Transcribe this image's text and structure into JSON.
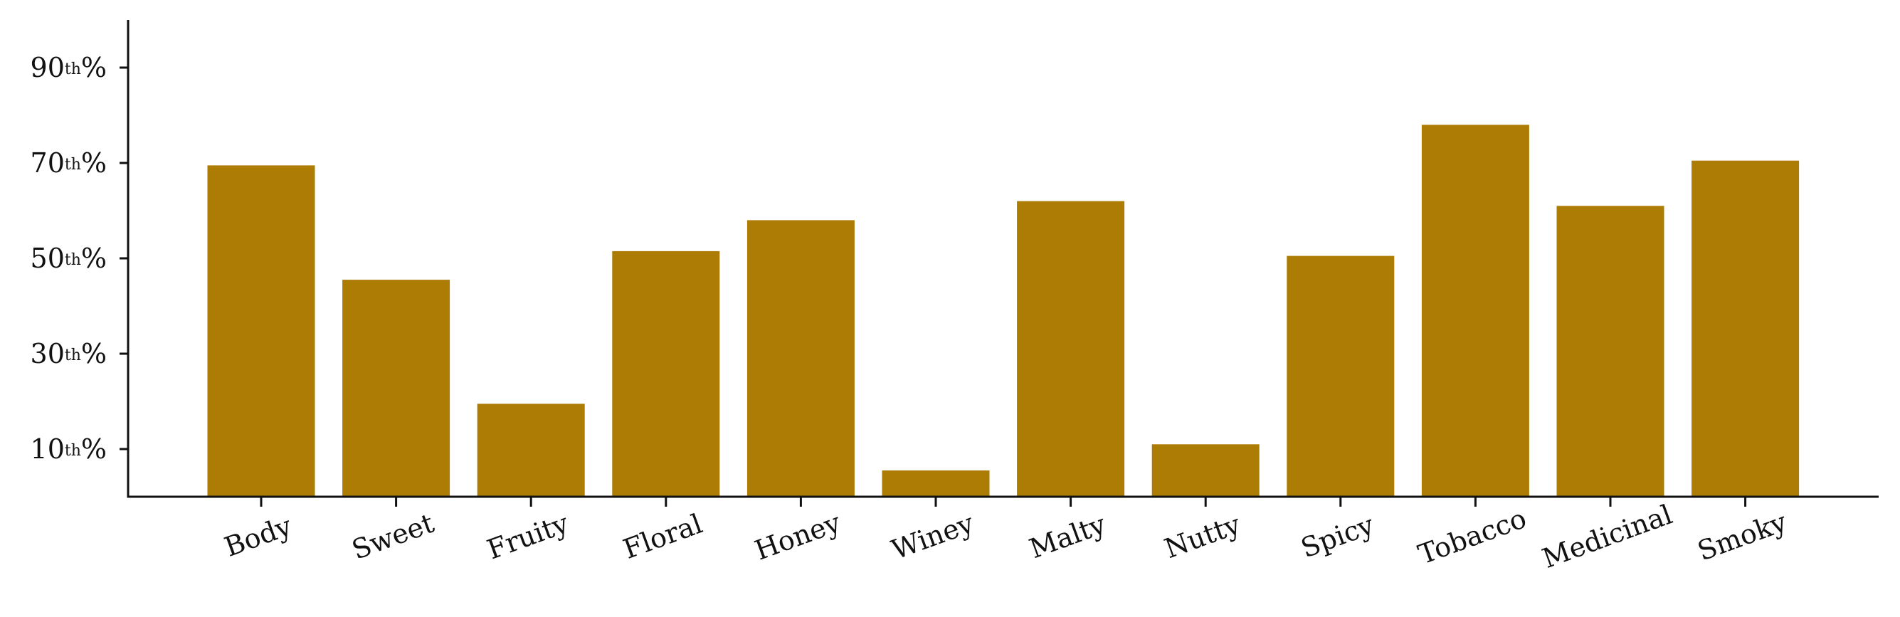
{
  "chart_data": {
    "type": "bar",
    "categories": [
      "Body",
      "Sweet",
      "Fruity",
      "Floral",
      "Honey",
      "Winey",
      "Malty",
      "Nutty",
      "Spicy",
      "Tobacco",
      "Medicinal",
      "Smoky"
    ],
    "values": [
      69.5,
      45.5,
      19.5,
      51.5,
      58,
      5.5,
      62,
      11,
      50.5,
      78,
      61,
      70.5
    ],
    "ylim": [
      0,
      100
    ],
    "yticks": [
      10,
      30,
      50,
      70,
      90
    ],
    "ytick_labels": [
      {
        "num": "10",
        "sup": "th",
        "suffix": "%"
      },
      {
        "num": "30",
        "sup": "th",
        "suffix": "%"
      },
      {
        "num": "50",
        "sup": "th",
        "suffix": "%"
      },
      {
        "num": "70",
        "sup": "th",
        "suffix": "%"
      },
      {
        "num": "90",
        "sup": "th",
        "suffix": "%"
      }
    ],
    "bar_color": "#ad7c05",
    "title": "",
    "xlabel": "",
    "ylabel": "",
    "grid": false,
    "xtick_rotation": -20
  }
}
